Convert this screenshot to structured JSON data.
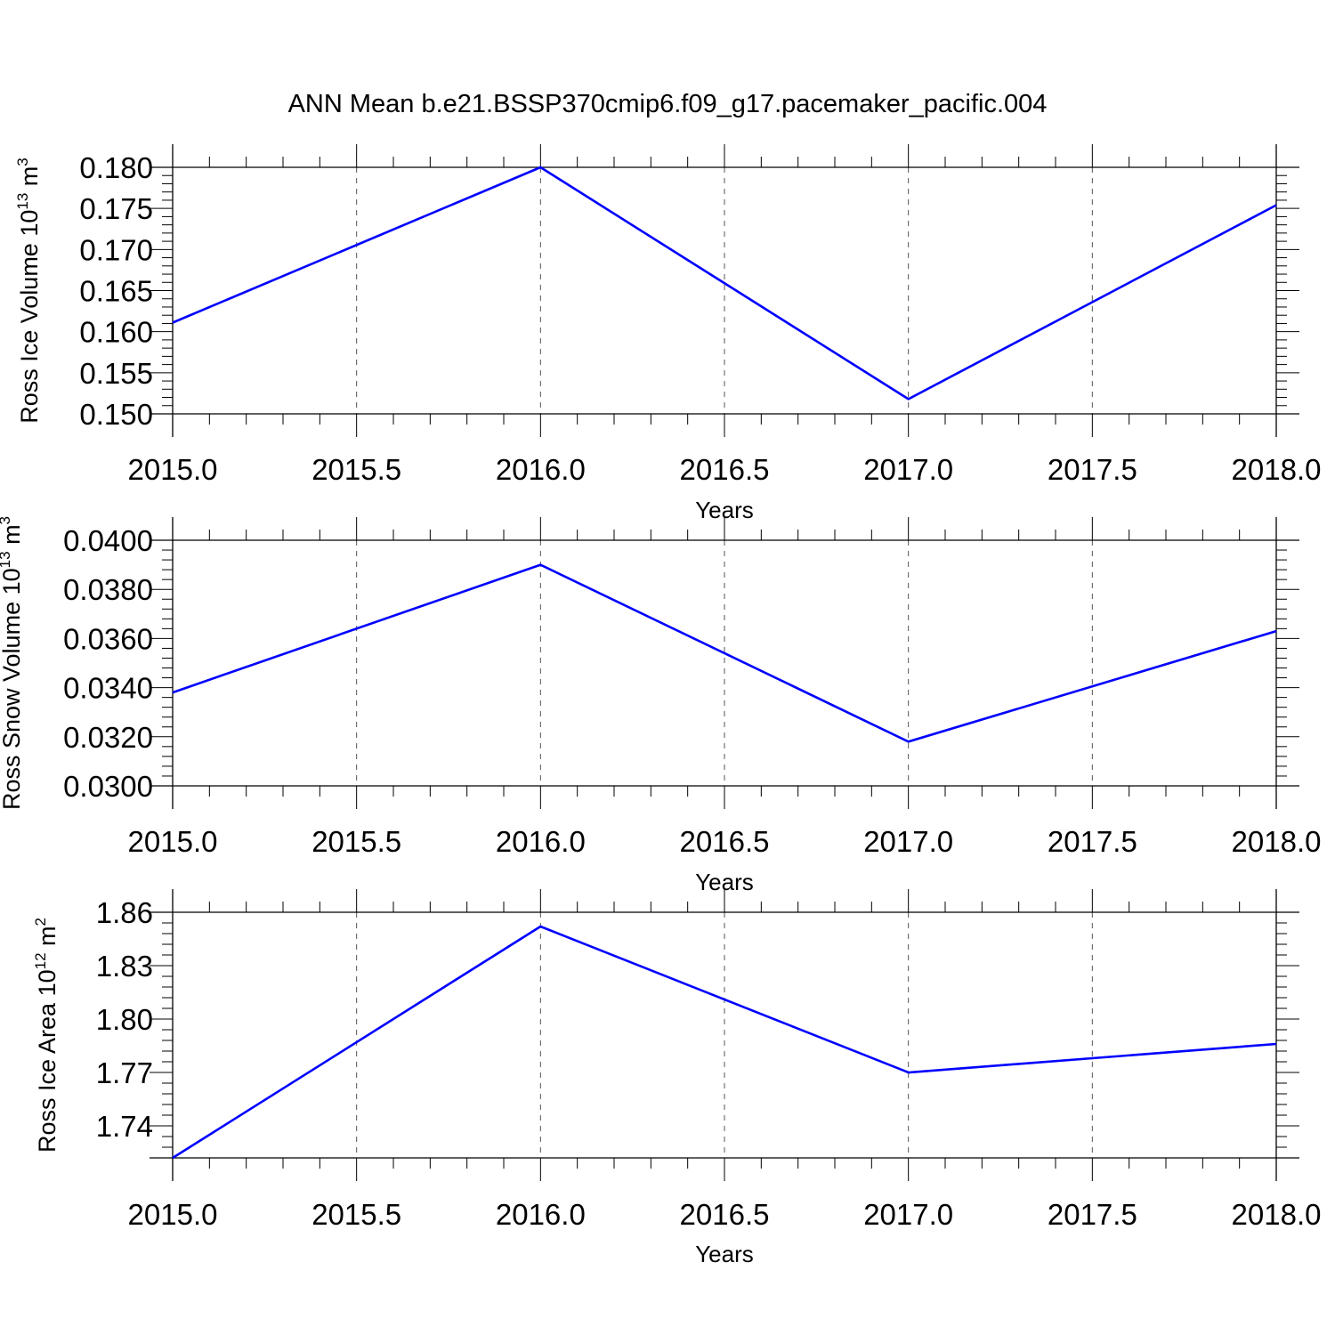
{
  "title": "ANN Mean b.e21.BSSP370cmip6.f09_g17.pacemaker_pacific.004",
  "colors": {
    "line": "#0000ff",
    "axis": "#000000",
    "grid": "#555555"
  },
  "chart_data": [
    {
      "type": "line",
      "x": [
        2015.0,
        2016.0,
        2017.0,
        2018.0
      ],
      "series": [
        {
          "values": [
            0.1611,
            0.18,
            0.1518,
            0.1754
          ]
        }
      ],
      "xlabel": "Years",
      "ylabel": "Ross Ice Volume",
      "ylabel_unit": {
        "base": "10",
        "exp": "13",
        "unit": "m",
        "unit_exp": "3"
      },
      "xlim": [
        2015.0,
        2018.0
      ],
      "ylim": [
        0.15,
        0.18
      ],
      "xticks": [
        "2015.0",
        "2015.5",
        "2016.0",
        "2016.5",
        "2017.0",
        "2017.5",
        "2018.0"
      ],
      "yticks": [
        "0.150",
        "0.155",
        "0.160",
        "0.165",
        "0.170",
        "0.175",
        "0.180"
      ],
      "ytick_values": [
        0.15,
        0.155,
        0.16,
        0.165,
        0.17,
        0.175,
        0.18
      ],
      "grid": "vertical dashed"
    },
    {
      "type": "line",
      "x": [
        2015.0,
        2016.0,
        2017.0,
        2018.0
      ],
      "series": [
        {
          "values": [
            0.0338,
            0.039,
            0.0318,
            0.0363
          ]
        }
      ],
      "xlabel": "Years",
      "ylabel": "Ross Snow Volume",
      "ylabel_unit": {
        "base": "10",
        "exp": "13",
        "unit": "m",
        "unit_exp": "3"
      },
      "xlim": [
        2015.0,
        2018.0
      ],
      "ylim": [
        0.03,
        0.04
      ],
      "xticks": [
        "2015.0",
        "2015.5",
        "2016.0",
        "2016.5",
        "2017.0",
        "2017.5",
        "2018.0"
      ],
      "yticks": [
        "0.0300",
        "0.0320",
        "0.0340",
        "0.0360",
        "0.0380",
        "0.0400"
      ],
      "ytick_values": [
        0.03,
        0.032,
        0.034,
        0.036,
        0.038,
        0.04
      ],
      "grid": "vertical dashed"
    },
    {
      "type": "line",
      "x": [
        2015.0,
        2016.0,
        2017.0,
        2018.0
      ],
      "series": [
        {
          "values": [
            1.722,
            1.852,
            1.77,
            1.786
          ]
        }
      ],
      "xlabel": "Years",
      "ylabel": "Ross Ice Area",
      "ylabel_unit": {
        "base": "10",
        "exp": "12",
        "unit": "m",
        "unit_exp": "2"
      },
      "xlim": [
        2015.0,
        2018.0
      ],
      "ylim": [
        1.722,
        1.86
      ],
      "xticks": [
        "2015.0",
        "2015.5",
        "2016.0",
        "2016.5",
        "2017.0",
        "2017.5",
        "2018.0"
      ],
      "yticks": [
        "1.74",
        "1.77",
        "1.80",
        "1.83",
        "1.86"
      ],
      "ytick_values": [
        1.74,
        1.77,
        1.8,
        1.83,
        1.86
      ],
      "grid": "vertical dashed"
    }
  ]
}
